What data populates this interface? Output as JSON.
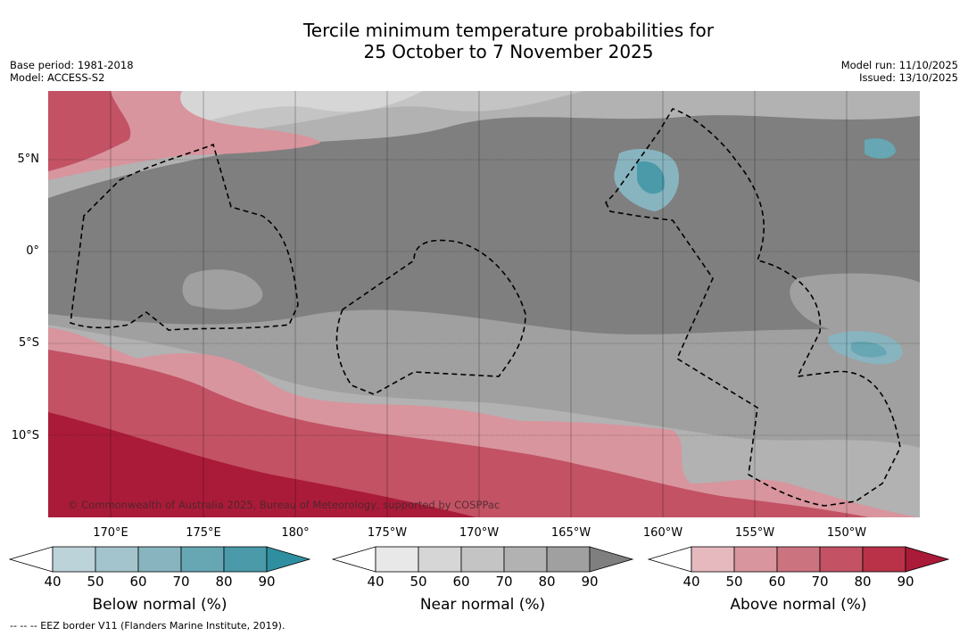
{
  "title_line1": "Tercile minimum temperature probabilities for",
  "title_line2": "25 October to 7 November 2025",
  "base_period": "Base period: 1981-2018",
  "model": "Model: ACCESS-S2",
  "model_run": "Model run: 11/10/2025",
  "issued": "Issued: 13/10/2025",
  "copyright": "© Commonwealth of Australia 2025, Bureau of Meteorology, supported by COSPPac",
  "y_axis_labels": [
    "5°N",
    "0°",
    "5°S",
    "10°S"
  ],
  "x_axis_labels": [
    "170°E",
    "175°E",
    "180°",
    "175°W",
    "170°W",
    "165°W",
    "160°W",
    "155°W",
    "150°W"
  ],
  "colorbars": [
    {
      "title": "Below normal (%)",
      "ticks": [
        "40",
        "50",
        "60",
        "70",
        "80",
        "90"
      ],
      "colors": [
        "#ffffff",
        "#bdd3da",
        "#a3c4cc",
        "#88b4bf",
        "#66a7b3",
        "#4a9aa9",
        "#2f8fa0"
      ]
    },
    {
      "title": "Near normal (%)",
      "ticks": [
        "40",
        "50",
        "60",
        "70",
        "80",
        "90"
      ],
      "colors": [
        "#ffffff",
        "#e8e8e8",
        "#d6d6d6",
        "#c4c4c4",
        "#b2b2b2",
        "#a0a0a0",
        "#7f7f7f"
      ]
    },
    {
      "title": "Above normal (%)",
      "ticks": [
        "40",
        "50",
        "60",
        "70",
        "80",
        "90"
      ],
      "colors": [
        "#ffffff",
        "#e6b9bf",
        "#d8959e",
        "#cc7380",
        "#c25264",
        "#b93248",
        "#aa1b39"
      ]
    }
  ],
  "footnote": "--  --  -- EEZ border V11 (Flanders Marine Institute, 2019)."
}
